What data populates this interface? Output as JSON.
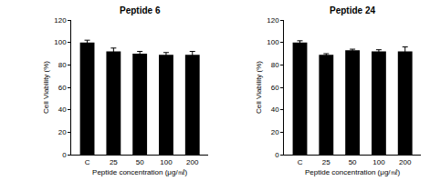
{
  "chart_data": [
    {
      "type": "bar",
      "title": "Peptide 6",
      "categories": [
        "C",
        "25",
        "50",
        "100",
        "200"
      ],
      "values": [
        100,
        92,
        90,
        89,
        89
      ],
      "errors": [
        2,
        3,
        2,
        2,
        3
      ],
      "color": "#000000",
      "xlabel": "Peptide concentration (μg/㎖)",
      "ylabel": "Cell Viability (%)",
      "ylim": [
        0,
        120
      ],
      "yticks": [
        0,
        20,
        40,
        60,
        80,
        100,
        120
      ],
      "grid": false
    },
    {
      "type": "bar",
      "title": "Peptide 24",
      "categories": [
        "C",
        "25",
        "50",
        "100",
        "200"
      ],
      "values": [
        100,
        89,
        93,
        92,
        92
      ],
      "errors": [
        1.5,
        1,
        1,
        1.5,
        4
      ],
      "color": "#000000",
      "xlabel": "Peptide concentration (μg/㎖)",
      "ylabel": "Cell Viability (%)",
      "ylim": [
        0,
        120
      ],
      "yticks": [
        0,
        20,
        40,
        60,
        80,
        100,
        120
      ],
      "grid": false
    }
  ]
}
